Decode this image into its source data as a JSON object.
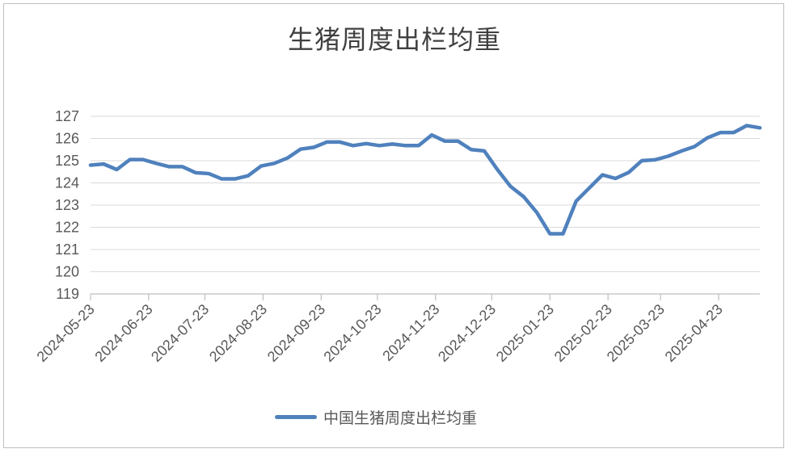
{
  "chart_data": {
    "type": "line",
    "title": "生猪周度出栏均重",
    "xlabel": "",
    "ylabel": "",
    "ylim": [
      119,
      127
    ],
    "yticks": [
      119,
      120,
      121,
      122,
      123,
      124,
      125,
      126,
      127
    ],
    "xtick_labels": [
      "2024-05-23",
      "2024-06-23",
      "2024-07-23",
      "2024-08-23",
      "2024-09-23",
      "2024-10-23",
      "2024-11-23",
      "2024-12-23",
      "2025-01-23",
      "2025-02-23",
      "2025-03-23",
      "2025-04-23"
    ],
    "grid": "horizontal",
    "legend_position": "bottom",
    "series": [
      {
        "name": "中国生猪周度出栏均重",
        "color": "#4f81bd",
        "points": [
          [
            "2024-05-23",
            124.8
          ],
          [
            "2024-05-30",
            124.85
          ],
          [
            "2024-06-06",
            124.6
          ],
          [
            "2024-06-13",
            125.05
          ],
          [
            "2024-06-20",
            125.05
          ],
          [
            "2024-06-27",
            124.88
          ],
          [
            "2024-07-04",
            124.73
          ],
          [
            "2024-07-11",
            124.73
          ],
          [
            "2024-07-18",
            124.46
          ],
          [
            "2024-07-25",
            124.42
          ],
          [
            "2024-08-01",
            124.18
          ],
          [
            "2024-08-08",
            124.18
          ],
          [
            "2024-08-15",
            124.32
          ],
          [
            "2024-08-22",
            124.76
          ],
          [
            "2024-08-29",
            124.88
          ],
          [
            "2024-09-05",
            125.12
          ],
          [
            "2024-09-12",
            125.52
          ],
          [
            "2024-09-19",
            125.6
          ],
          [
            "2024-09-26",
            125.84
          ],
          [
            "2024-10-03",
            125.84
          ],
          [
            "2024-10-10",
            125.68
          ],
          [
            "2024-10-17",
            125.77
          ],
          [
            "2024-10-24",
            125.68
          ],
          [
            "2024-10-31",
            125.75
          ],
          [
            "2024-11-07",
            125.68
          ],
          [
            "2024-11-14",
            125.68
          ],
          [
            "2024-11-21",
            126.16
          ],
          [
            "2024-11-28",
            125.88
          ],
          [
            "2024-12-05",
            125.88
          ],
          [
            "2024-12-12",
            125.5
          ],
          [
            "2024-12-19",
            125.44
          ],
          [
            "2024-12-26",
            124.6
          ],
          [
            "2025-01-02",
            123.84
          ],
          [
            "2025-01-09",
            123.38
          ],
          [
            "2025-01-16",
            122.67
          ],
          [
            "2025-01-23",
            121.71
          ],
          [
            "2025-01-30",
            121.71
          ],
          [
            "2025-02-06",
            123.18
          ],
          [
            "2025-02-13",
            123.77
          ],
          [
            "2025-02-20",
            124.36
          ],
          [
            "2025-02-27",
            124.2
          ],
          [
            "2025-03-06",
            124.47
          ],
          [
            "2025-03-13",
            125.0
          ],
          [
            "2025-03-20",
            125.04
          ],
          [
            "2025-03-27",
            125.2
          ],
          [
            "2025-04-03",
            125.43
          ],
          [
            "2025-04-10",
            125.63
          ],
          [
            "2025-04-17",
            126.03
          ],
          [
            "2025-04-24",
            126.27
          ],
          [
            "2025-05-01",
            126.27
          ],
          [
            "2025-05-08",
            126.58
          ],
          [
            "2025-05-15",
            126.48
          ]
        ]
      }
    ]
  }
}
